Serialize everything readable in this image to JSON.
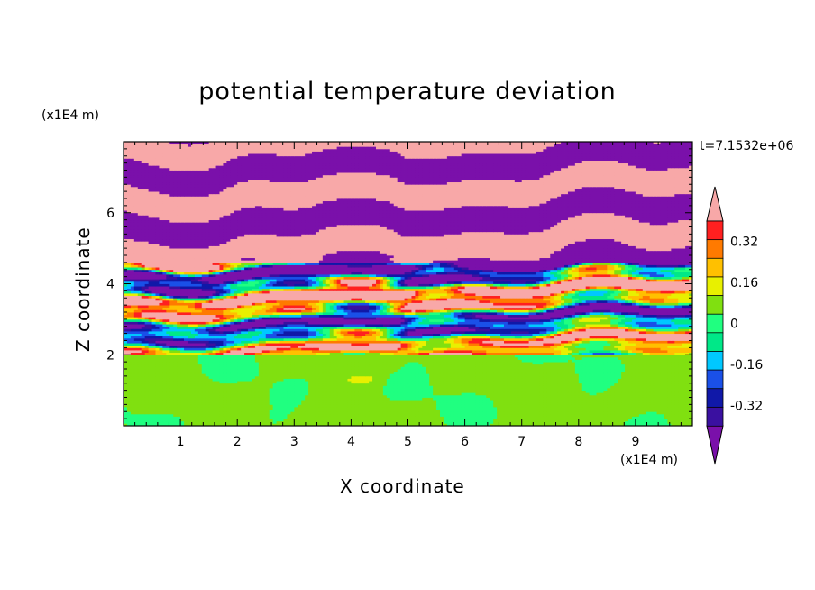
{
  "chart_data": {
    "type": "heatmap",
    "title": "potential temperature deviation",
    "xlabel": "X coordinate",
    "ylabel": "Z coordinate",
    "x_unit": "(x1E4 m)",
    "y_unit": "(x1E4 m)",
    "time_label": "t=7.1532e+06",
    "xlim": [
      0,
      10
    ],
    "ylim": [
      0,
      8
    ],
    "x_ticks": [
      "1",
      "2",
      "3",
      "4",
      "5",
      "6",
      "7",
      "8",
      "9"
    ],
    "y_ticks": [
      "2",
      "4",
      "6"
    ],
    "colorbar": {
      "levels": [
        -0.48,
        -0.4,
        -0.32,
        -0.24,
        -0.16,
        -0.08,
        0,
        0.08,
        0.16,
        0.24,
        0.32,
        0.4,
        0.48
      ],
      "labels": [
        "0.32",
        "0.16",
        "0",
        "-0.16",
        "-0.32"
      ],
      "label_values": [
        0.32,
        0.16,
        0,
        -0.16,
        -0.32
      ],
      "colors": [
        "#7a10aa",
        "#3a10a0",
        "#1018a8",
        "#1a50e8",
        "#00c8ff",
        "#00e888",
        "#20ff80",
        "#80e010",
        "#e8f000",
        "#ffc000",
        "#ff7a00",
        "#ff2020",
        "#f8a8a8"
      ],
      "extend": "both"
    },
    "regions": [
      {
        "z_range": [
          0,
          2.0
        ],
        "description_values": [
          0,
          0.08
        ],
        "pattern": "near-zero, patches of 0 to 0.08 with a few 0.16 spots"
      },
      {
        "z_range": [
          2.0,
          4.5
        ],
        "description_values": [
          -0.48,
          0.48
        ],
        "pattern": "mixed full-range thin layers"
      },
      {
        "z_range": [
          4.5,
          8.0
        ],
        "description_values": [
          -0.48,
          0.48
        ],
        "pattern": "alternating layers of > 0.48 and < -0.48"
      }
    ]
  }
}
